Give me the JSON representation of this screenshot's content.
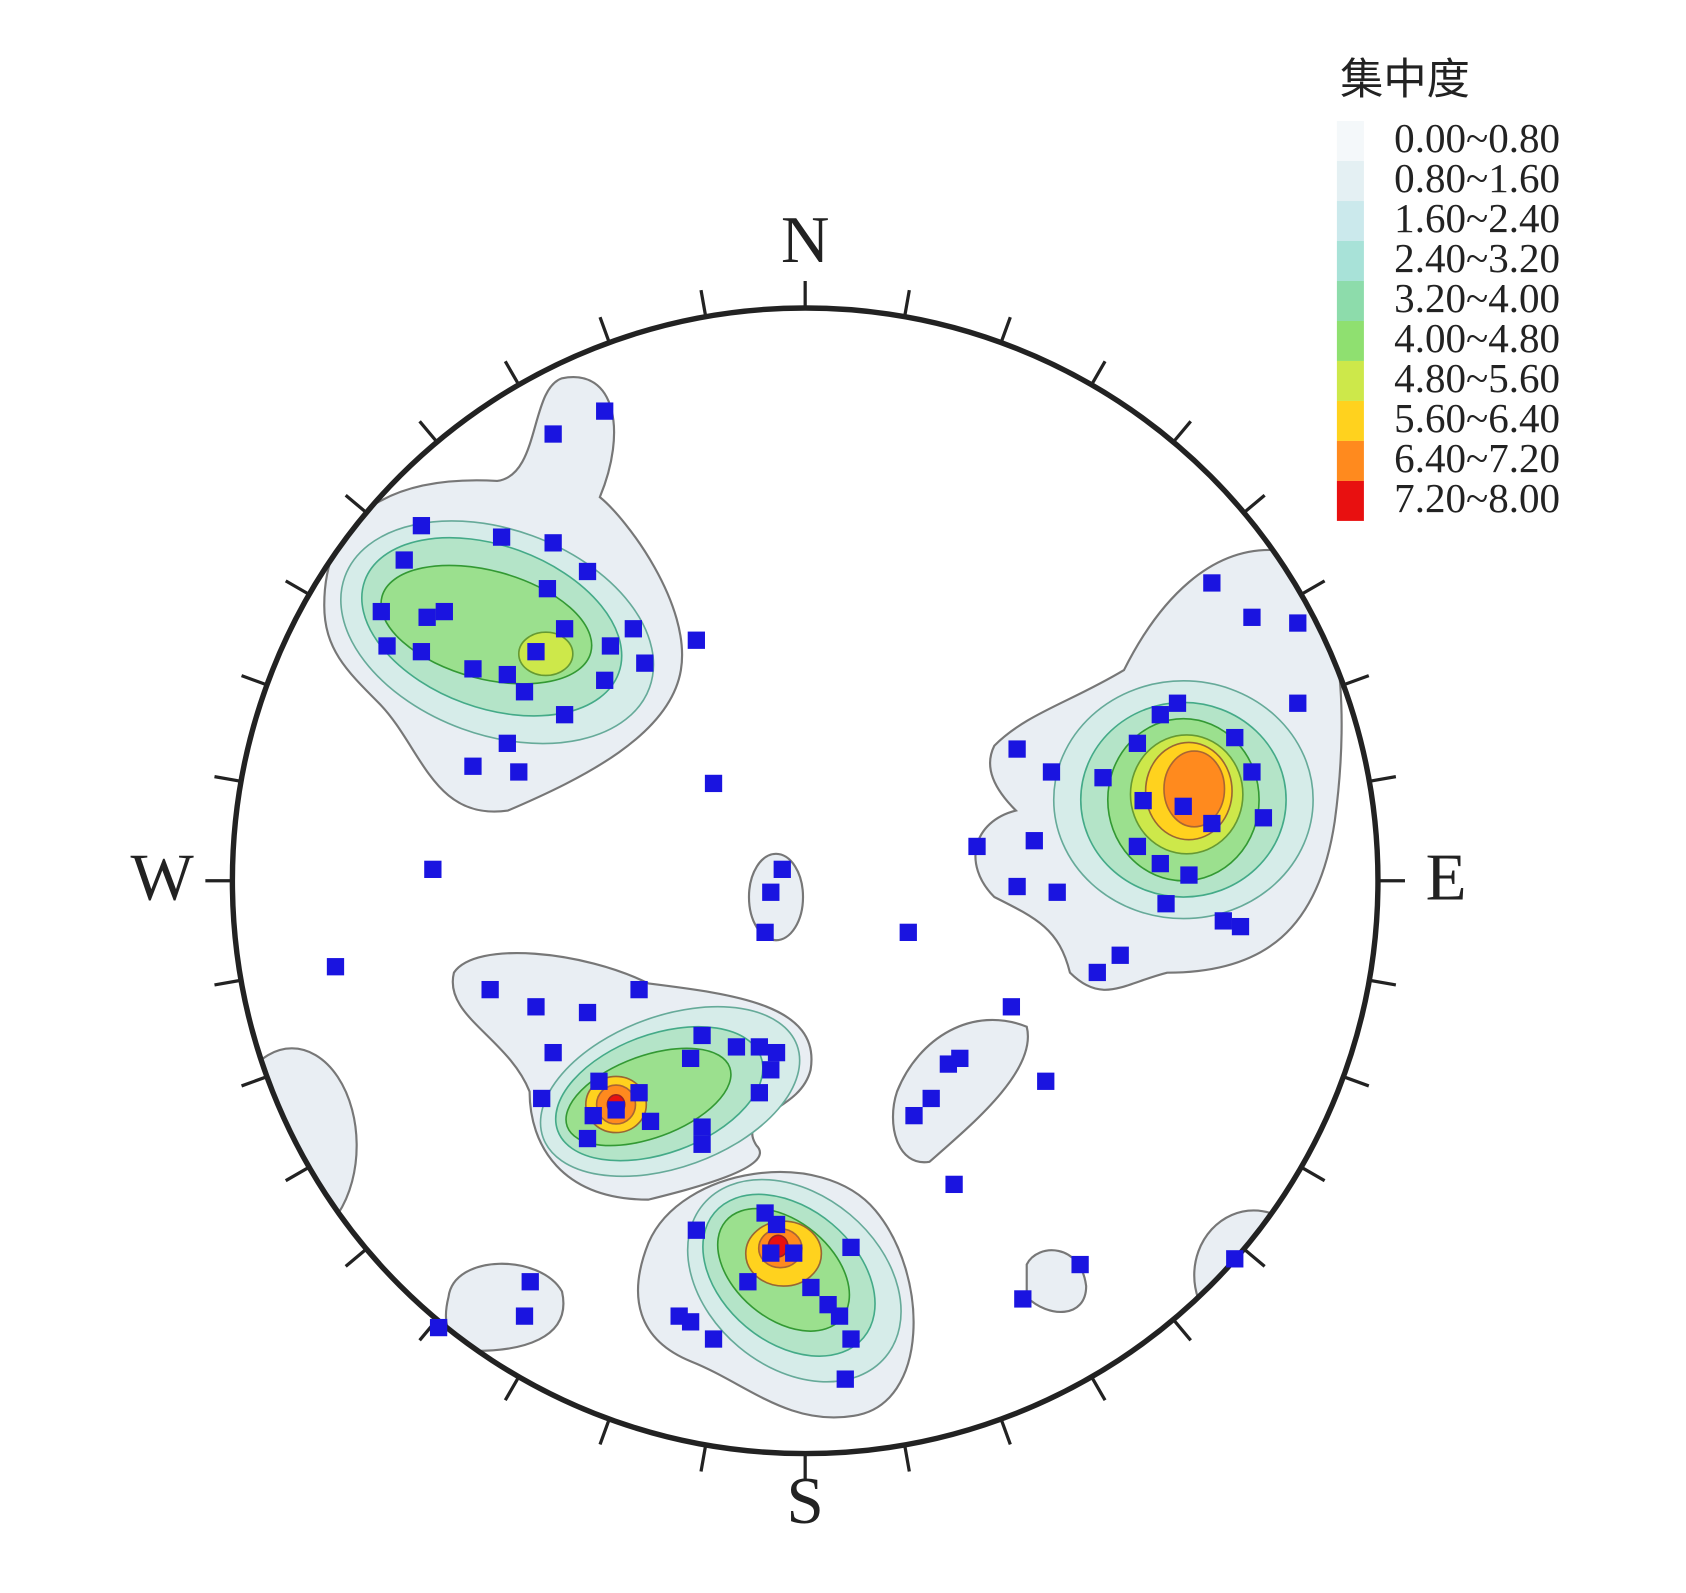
{
  "chart_data": {
    "type": "stereonet",
    "direction_labels": {
      "north": "N",
      "east": "E",
      "south": "S",
      "west": "W"
    },
    "legend": {
      "title": "集中度",
      "items": [
        {
          "label": "0.00~0.80",
          "color": "#f4f8fa"
        },
        {
          "label": "0.80~1.60",
          "color": "#e4f0f3"
        },
        {
          "label": "1.60~2.40",
          "color": "#cbe9ec"
        },
        {
          "label": "2.40~3.20",
          "color": "#a8e2d8"
        },
        {
          "label": "3.20~4.00",
          "color": "#8ddcab"
        },
        {
          "label": "4.00~4.80",
          "color": "#8fe070"
        },
        {
          "label": "4.80~5.60",
          "color": "#cde84a"
        },
        {
          "label": "5.60~6.40",
          "color": "#ffd21e"
        },
        {
          "label": "6.40~7.20",
          "color": "#ff8a1e"
        },
        {
          "label": "7.20~8.00",
          "color": "#e81010"
        }
      ]
    },
    "xlim": [
      -1,
      1
    ],
    "ylim": [
      -1,
      1
    ],
    "series": [
      {
        "color": "#1a14e0",
        "x": [
          -0.35,
          -0.44,
          -0.67,
          -0.53,
          -0.44,
          -0.7,
          -0.38,
          -0.45,
          -0.74,
          -0.66,
          -0.63,
          -0.73,
          -0.67,
          -0.42,
          -0.3,
          -0.58,
          -0.52,
          -0.47,
          -0.34,
          -0.28,
          -0.35,
          -0.49,
          -0.42,
          -0.58,
          -0.52,
          -0.5,
          -0.19,
          -0.16,
          -0.04,
          -0.06,
          -0.07,
          -0.65,
          -0.82,
          0.18,
          0.71,
          0.78,
          0.86,
          0.86,
          0.37,
          0.43,
          0.52,
          0.58,
          0.62,
          0.65,
          0.75,
          0.78,
          0.59,
          0.66,
          0.71,
          0.8,
          0.58,
          0.62,
          0.67,
          0.3,
          0.4,
          0.37,
          0.44,
          0.63,
          0.73,
          0.76,
          0.55,
          0.51,
          0.36,
          0.42,
          0.25,
          0.27,
          0.22,
          0.19,
          0.26,
          0.48,
          0.38,
          0.75,
          -0.55,
          -0.47,
          -0.38,
          -0.29,
          -0.44,
          -0.36,
          -0.29,
          -0.46,
          -0.37,
          -0.33,
          -0.38,
          -0.27,
          -0.2,
          -0.18,
          -0.12,
          -0.08,
          -0.05,
          -0.06,
          -0.08,
          -0.18,
          -0.18,
          -0.48,
          -0.49,
          -0.64,
          -0.19,
          -0.07,
          -0.05,
          -0.02,
          -0.06,
          -0.1,
          0.01,
          0.08,
          0.04,
          0.06,
          0.08,
          -0.22,
          -0.2,
          -0.16,
          0.07
        ],
        "y": [
          0.82,
          0.78,
          0.62,
          0.6,
          0.59,
          0.56,
          0.54,
          0.51,
          0.47,
          0.46,
          0.47,
          0.41,
          0.4,
          0.44,
          0.44,
          0.37,
          0.36,
          0.4,
          0.41,
          0.38,
          0.35,
          0.33,
          0.29,
          0.2,
          0.24,
          0.19,
          0.42,
          0.17,
          0.02,
          -0.02,
          -0.09,
          0.02,
          -0.15,
          -0.09,
          0.52,
          0.46,
          0.45,
          0.31,
          0.23,
          0.19,
          0.18,
          0.24,
          0.29,
          0.31,
          0.25,
          0.19,
          0.14,
          0.13,
          0.1,
          0.11,
          0.06,
          0.03,
          0.01,
          0.06,
          0.07,
          -0.01,
          -0.02,
          -0.04,
          -0.07,
          -0.08,
          -0.13,
          -0.16,
          -0.22,
          -0.35,
          -0.32,
          -0.31,
          -0.38,
          -0.41,
          -0.53,
          -0.67,
          -0.73,
          -0.66,
          -0.19,
          -0.22,
          -0.23,
          -0.19,
          -0.3,
          -0.35,
          -0.37,
          -0.38,
          -0.41,
          -0.4,
          -0.45,
          -0.42,
          -0.31,
          -0.27,
          -0.29,
          -0.29,
          -0.3,
          -0.33,
          -0.37,
          -0.43,
          -0.46,
          -0.7,
          -0.76,
          -0.78,
          -0.61,
          -0.58,
          -0.6,
          -0.65,
          -0.65,
          -0.7,
          -0.71,
          -0.64,
          -0.74,
          -0.76,
          -0.8,
          -0.76,
          -0.77,
          -0.8,
          -0.87
        ]
      }
    ]
  }
}
